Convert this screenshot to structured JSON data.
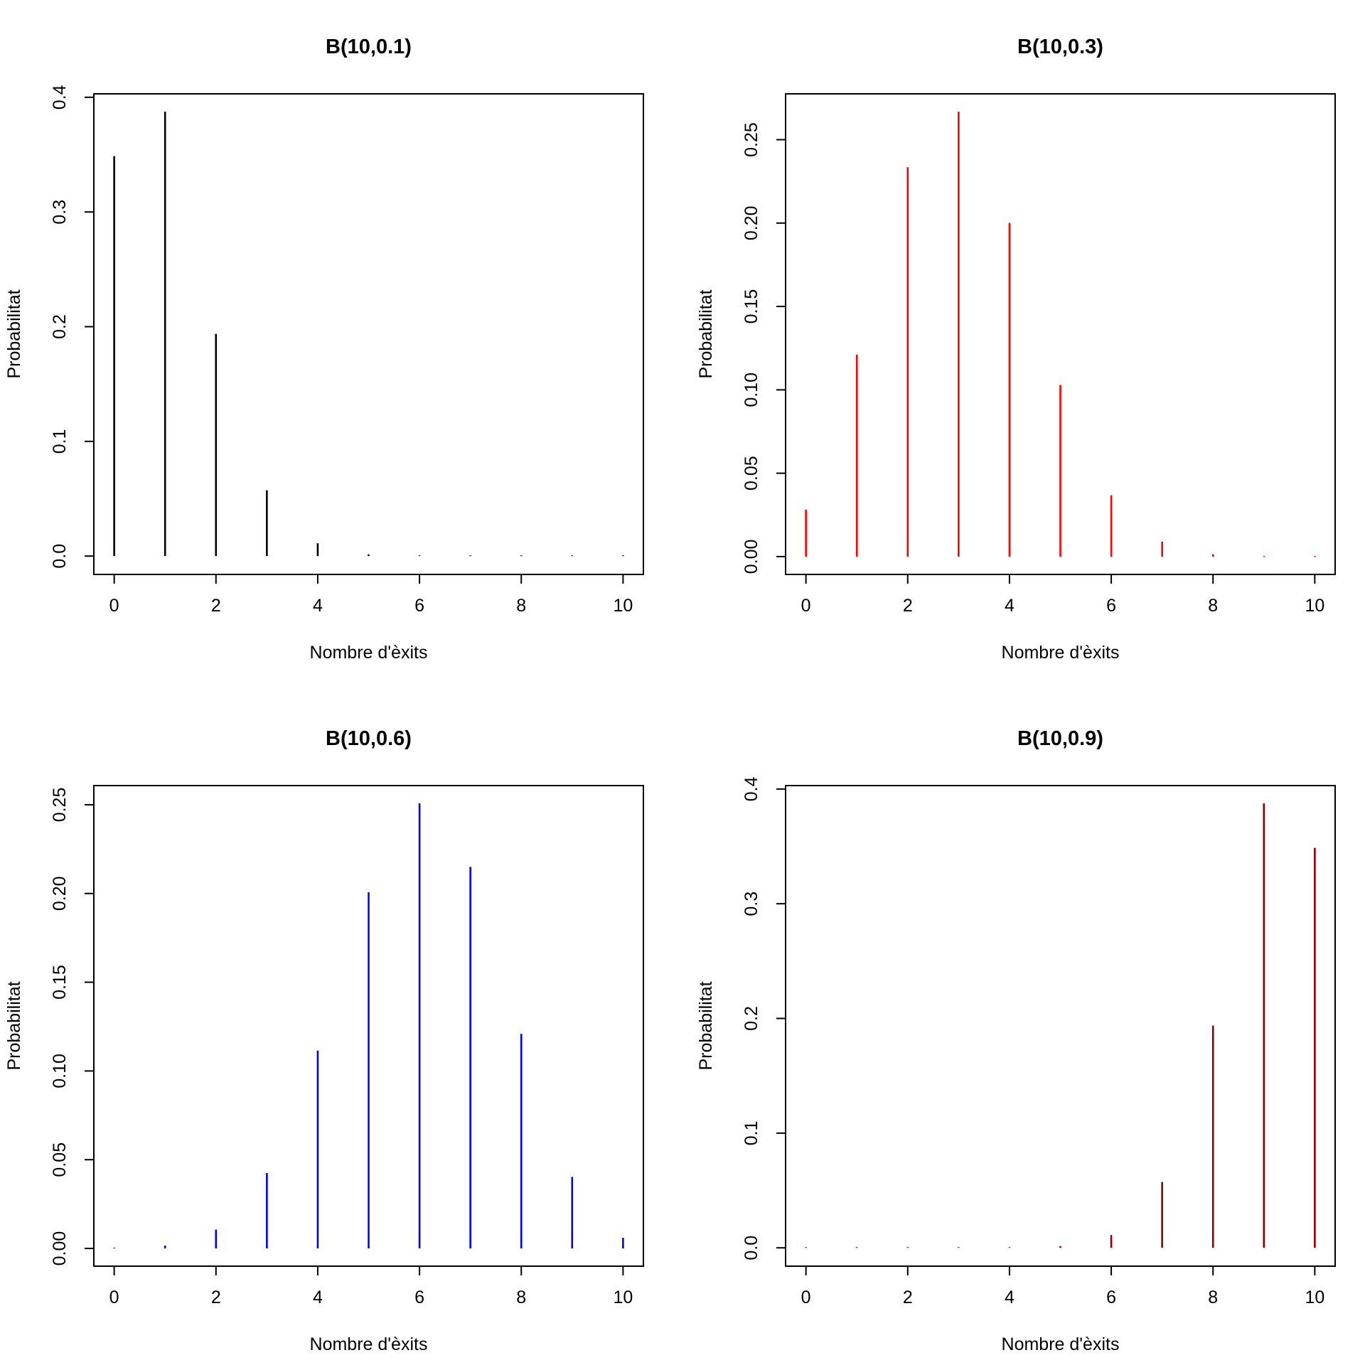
{
  "chart_data": [
    {
      "type": "bar",
      "title": "B(10,0.1)",
      "xlabel": "Nombre d'èxits",
      "ylabel": "Probabilitat",
      "color": "#000000",
      "x": [
        0,
        1,
        2,
        3,
        4,
        5,
        6,
        7,
        8,
        9,
        10
      ],
      "values": [
        0.3487,
        0.3874,
        0.1937,
        0.0574,
        0.0112,
        0.0015,
        0.0001,
        0.0,
        0.0,
        0.0,
        0.0
      ],
      "xlim": [
        -0.4,
        10.4
      ],
      "ylim": [
        -0.016,
        0.403
      ],
      "xticks": [
        "0",
        "2",
        "4",
        "6",
        "8",
        "10"
      ],
      "yticks": [
        "0.0",
        "0.1",
        "0.2",
        "0.3",
        "0.4"
      ]
    },
    {
      "type": "bar",
      "title": "B(10,0.3)",
      "xlabel": "Nombre d'èxits",
      "ylabel": "Probabilitat",
      "color": "#ff0000",
      "x": [
        0,
        1,
        2,
        3,
        4,
        5,
        6,
        7,
        8,
        9,
        10
      ],
      "values": [
        0.0282,
        0.1211,
        0.2335,
        0.2668,
        0.2001,
        0.1029,
        0.0368,
        0.009,
        0.0014,
        0.0001,
        0.0
      ],
      "xlim": [
        -0.4,
        10.4
      ],
      "ylim": [
        -0.0107,
        0.2775
      ],
      "xticks": [
        "0",
        "2",
        "4",
        "6",
        "8",
        "10"
      ],
      "yticks": [
        "0.00",
        "0.05",
        "0.10",
        "0.15",
        "0.20",
        "0.25"
      ]
    },
    {
      "type": "bar",
      "title": "B(10,0.6)",
      "xlabel": "Nombre d'èxits",
      "ylabel": "Probabilitat",
      "color": "#0000ff",
      "x": [
        0,
        1,
        2,
        3,
        4,
        5,
        6,
        7,
        8,
        9,
        10
      ],
      "values": [
        0.0001,
        0.0016,
        0.0106,
        0.0425,
        0.1115,
        0.2007,
        0.2508,
        0.215,
        0.1209,
        0.0403,
        0.006
      ],
      "xlim": [
        -0.4,
        10.4
      ],
      "ylim": [
        -0.01,
        0.2608
      ],
      "xticks": [
        "0",
        "2",
        "4",
        "6",
        "8",
        "10"
      ],
      "yticks": [
        "0.00",
        "0.05",
        "0.10",
        "0.15",
        "0.20",
        "0.25"
      ]
    },
    {
      "type": "bar",
      "title": "B(10,0.9)",
      "xlabel": "Nombre d'èxits",
      "ylabel": "Probabilitat",
      "color": "#8b0000",
      "x": [
        0,
        1,
        2,
        3,
        4,
        5,
        6,
        7,
        8,
        9,
        10
      ],
      "values": [
        0.0,
        0.0,
        0.0,
        0.0,
        0.0001,
        0.0015,
        0.0112,
        0.0574,
        0.1937,
        0.3874,
        0.3487
      ],
      "xlim": [
        -0.4,
        10.4
      ],
      "ylim": [
        -0.016,
        0.403
      ],
      "xticks": [
        "0",
        "2",
        "4",
        "6",
        "8",
        "10"
      ],
      "yticks": [
        "0.0",
        "0.1",
        "0.2",
        "0.3",
        "0.4"
      ]
    }
  ]
}
